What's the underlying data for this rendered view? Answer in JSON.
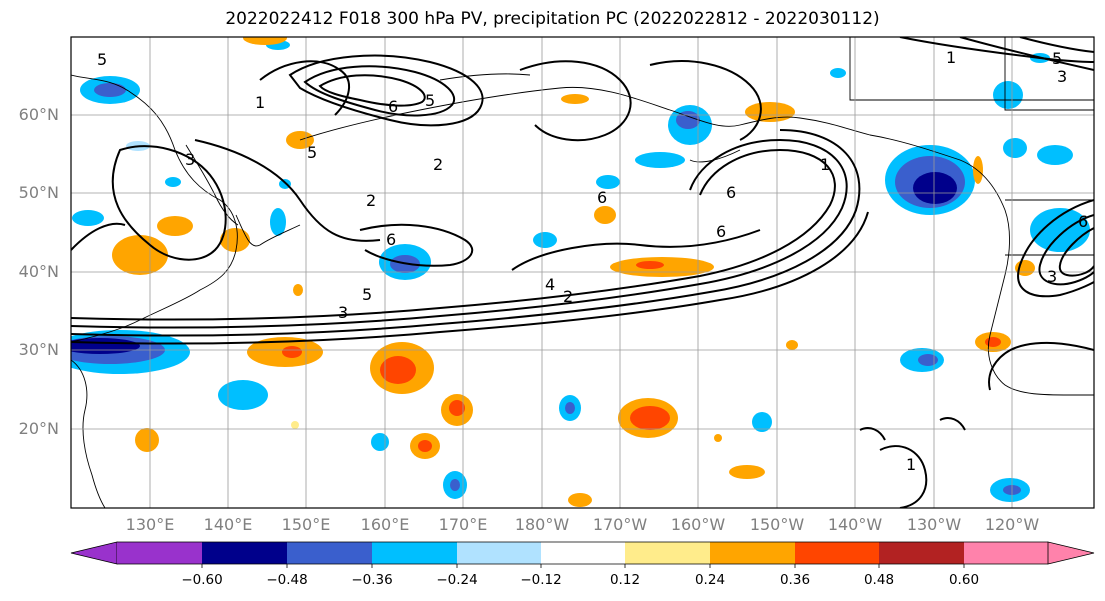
{
  "title": "2022022412 F018 300 hPa PV, precipitation PC (2022022812 - 2022030112)",
  "lat_labels": [
    "60°N",
    "50°N",
    "40°N",
    "30°N",
    "20°N"
  ],
  "lon_labels": [
    "130°E",
    "140°E",
    "150°E",
    "160°E",
    "170°E",
    "180°W",
    "170°W",
    "160°W",
    "150°W",
    "140°W",
    "130°W",
    "120°W"
  ],
  "colorbar": {
    "ticks": [
      "−0.60",
      "−0.48",
      "−0.36",
      "−0.24",
      "−0.12",
      "0.12",
      "0.24",
      "0.36",
      "0.48",
      "0.60"
    ],
    "colors": [
      "#9932CC",
      "#00008B",
      "#3A5FCD",
      "#00BFFF",
      "#B0E2FF",
      "#FFFFFF",
      "#FFEC8B",
      "#FFA500",
      "#FF4500",
      "#B22222",
      "#FF82AB"
    ]
  },
  "contour_labels": [
    "5",
    "1",
    "6",
    "5",
    "3",
    "2",
    "2",
    "5",
    "6",
    "4",
    "5",
    "3",
    "2",
    "6",
    "6",
    "6",
    "1",
    "1",
    "3",
    "5",
    "6",
    "3",
    "1"
  ]
}
